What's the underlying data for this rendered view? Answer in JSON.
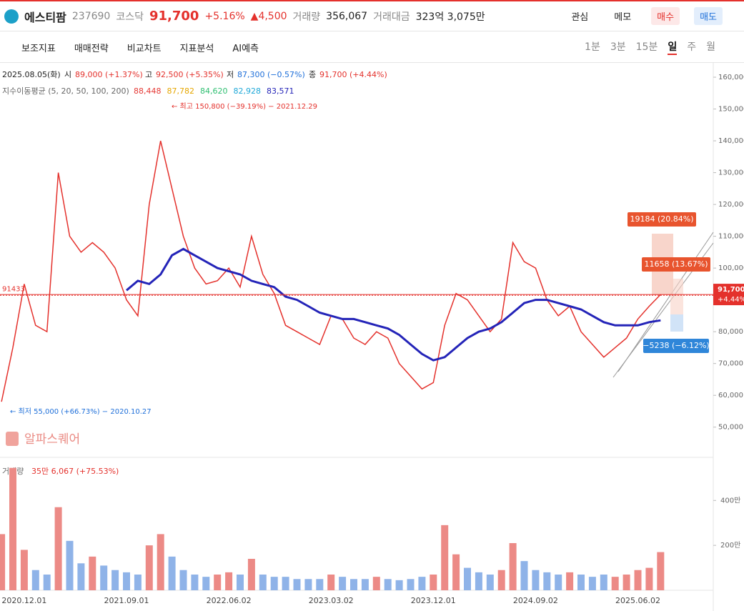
{
  "header": {
    "name": "에스티팜",
    "code": "237690",
    "market": "코스닥",
    "price": "91,700",
    "change_pct": "+5.16%",
    "change": "▲4,500",
    "volume_label": "거래량",
    "volume": "356,067",
    "amount_label": "거래대금",
    "amount": "323억 3,075만",
    "buttons": [
      "관심",
      "메모",
      "매수",
      "매도"
    ]
  },
  "toolbar": {
    "tools": [
      "보조지표",
      "매매전략",
      "비교차트",
      "지표분석",
      "AI예측"
    ],
    "periods": [
      "1분",
      "3분",
      "15분",
      "일",
      "주",
      "월"
    ]
  },
  "info": {
    "date": "2025.08.05(화)",
    "open_label": "시",
    "open": "89,000 (+1.37%)",
    "high_label": "고",
    "high": "92,500 (+5.35%)",
    "low_label": "저",
    "low": "87,300 (−0.57%)",
    "close_label": "종",
    "close": "91,700 (+4.44%)",
    "ma_title": "지수이동평균 (5, 20, 50, 100, 200)",
    "ma_values": [
      "88,448",
      "87,782",
      "84,620",
      "82,928",
      "83,571"
    ],
    "ma_colors": [
      "#e53935",
      "#e6a700",
      "#2fbf71",
      "#1fa8d8",
      "#2424b8"
    ]
  },
  "chart_data": [
    {
      "type": "line",
      "x": [
        "2020.10.01",
        "2020.11.02",
        "2020.12.01",
        "2021.01.04",
        "2021.02.01",
        "2021.03.02",
        "2021.04.01",
        "2021.05.03",
        "2021.06.01",
        "2021.07.01",
        "2021.08.02",
        "2021.09.01",
        "2021.10.01",
        "2021.11.01",
        "2021.12.01",
        "2022.01.03",
        "2022.02.03",
        "2022.03.02",
        "2022.04.01",
        "2022.05.02",
        "2022.06.02",
        "2022.07.01",
        "2022.08.01",
        "2022.09.01",
        "2022.10.04",
        "2022.11.01",
        "2022.12.01",
        "2023.01.02",
        "2023.02.01",
        "2023.03.02",
        "2023.04.03",
        "2023.05.02",
        "2023.06.01",
        "2023.07.03",
        "2023.08.01",
        "2023.09.01",
        "2023.10.04",
        "2023.11.01",
        "2023.12.01",
        "2024.01.02",
        "2024.02.01",
        "2024.03.04",
        "2024.04.01",
        "2024.05.02",
        "2024.06.03",
        "2024.07.01",
        "2024.08.01",
        "2024.09.02",
        "2024.10.02",
        "2024.11.01",
        "2024.12.02",
        "2025.01.02",
        "2025.02.03",
        "2025.03.04",
        "2025.04.01",
        "2025.05.02",
        "2025.06.02",
        "2025.07.01",
        "2025.08.05"
      ],
      "series": [
        {
          "color": "#e4312c",
          "values": [
            58000,
            75000,
            95000,
            82000,
            80000,
            130000,
            110000,
            105000,
            108000,
            105000,
            100000,
            90000,
            85000,
            120000,
            140000,
            125000,
            110000,
            100000,
            95000,
            96000,
            100000,
            94000,
            110000,
            98000,
            92000,
            82000,
            80000,
            78000,
            76000,
            85000,
            84000,
            78000,
            76000,
            80000,
            78000,
            70000,
            66000,
            62000,
            64000,
            82000,
            92000,
            90000,
            85000,
            80000,
            84000,
            108000,
            102000,
            100000,
            90000,
            85000,
            88000,
            80000,
            76000,
            72000,
            75000,
            78000,
            84000,
            88000,
            91700
          ]
        },
        {
          "color": "#2424b8",
          "values": [
            null,
            null,
            null,
            null,
            null,
            null,
            null,
            null,
            null,
            null,
            null,
            93000,
            96000,
            95000,
            98000,
            104000,
            106000,
            104000,
            102000,
            100000,
            99000,
            98000,
            96000,
            95000,
            94000,
            91000,
            90000,
            88000,
            86000,
            85000,
            84000,
            84000,
            83000,
            82000,
            81000,
            79000,
            76000,
            73000,
            71000,
            72000,
            75000,
            78000,
            80000,
            81000,
            83000,
            86000,
            89000,
            90000,
            90000,
            89000,
            88000,
            87000,
            85000,
            83000,
            82000,
            82000,
            82000,
            83000,
            83571
          ]
        }
      ],
      "ylim": [
        40500,
        164500
      ],
      "yticks": [
        {
          "value": 50000,
          "label": "50,000"
        },
        {
          "value": 60000,
          "label": "60,000"
        },
        {
          "value": 70000,
          "label": "70,000"
        },
        {
          "value": 80000,
          "label": "80,000"
        },
        {
          "value": 90000,
          "label": "90,000"
        },
        {
          "value": 100000,
          "label": "100,000"
        },
        {
          "value": 110000,
          "label": "110,000"
        },
        {
          "value": 120000,
          "label": "120,000"
        },
        {
          "value": 130000,
          "label": "130,000"
        },
        {
          "value": 140000,
          "label": "140,000"
        },
        {
          "value": 150000,
          "label": "150,000"
        },
        {
          "value": 160000,
          "label": "160,000"
        }
      ],
      "xticks": [
        "2020.12.01",
        "2021.09.01",
        "2022.06.02",
        "2023.03.02",
        "2023.12.01",
        "2024.09.02",
        "2025.06.02"
      ],
      "ref_line": 91433,
      "last_price": {
        "value": 91700,
        "label": "91,700"
      },
      "last_change": "+4.44%",
      "annotations": {
        "high": "← 최고 150,800 (−39.19%) − 2021.12.29",
        "low": "← 최저 55,000 (+66.73%) − 2020.10.27",
        "up1": "19184 (20.84%)",
        "up2": "11658 (13.67%)",
        "down": "−5238 (−6.12%)"
      },
      "watermark": "알파스퀘어"
    },
    {
      "type": "bar",
      "title": "거래량",
      "value_text": "35만 6,067 (+75.53%)",
      "values": [
        2500000,
        5450000,
        1800000,
        900000,
        700000,
        3700000,
        2200000,
        1200000,
        1500000,
        1100000,
        900000,
        800000,
        700000,
        2000000,
        2500000,
        1500000,
        900000,
        700000,
        600000,
        700000,
        800000,
        700000,
        1400000,
        700000,
        600000,
        600000,
        500000,
        500000,
        500000,
        700000,
        600000,
        500000,
        500000,
        600000,
        500000,
        450000,
        500000,
        600000,
        700000,
        2900000,
        1600000,
        1000000,
        800000,
        700000,
        900000,
        2100000,
        1300000,
        900000,
        800000,
        700000,
        800000,
        700000,
        600000,
        700000,
        600000,
        700000,
        900000,
        1000000,
        1700000
      ],
      "ylim": [
        0,
        5600000
      ],
      "yticks": [
        {
          "value": 2000000,
          "label": "200만"
        },
        {
          "value": 4000000,
          "label": "400만"
        }
      ]
    }
  ]
}
